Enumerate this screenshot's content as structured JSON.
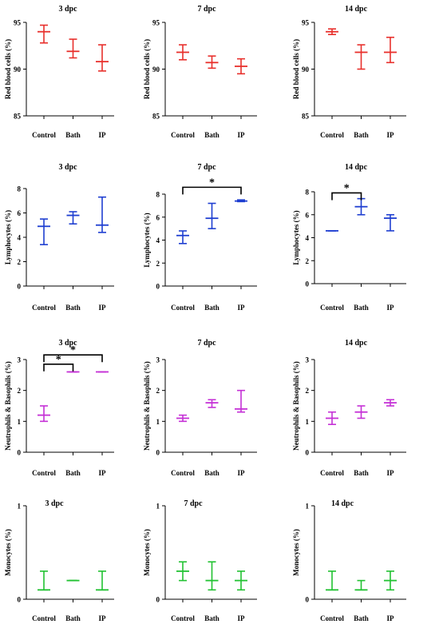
{
  "chart_data": [
    {
      "type": "errorbar",
      "title": "3 dpc",
      "ylabel": "Red blood cells (%)",
      "categories": [
        "Control",
        "Bath",
        "IP"
      ],
      "ylim": [
        85,
        95
      ],
      "yticks": [
        85,
        90,
        95
      ],
      "color": "#e8302c",
      "series": [
        {
          "mean": [
            94.0,
            91.9,
            90.8
          ],
          "lower": [
            92.8,
            91.2,
            89.8
          ],
          "upper": [
            94.7,
            93.2,
            92.6
          ]
        }
      ],
      "annotations": []
    },
    {
      "type": "errorbar",
      "title": "7 dpc",
      "ylabel": "Red blood cells (%)",
      "categories": [
        "Control",
        "Bath",
        "IP"
      ],
      "ylim": [
        85,
        95
      ],
      "yticks": [
        85,
        90,
        95
      ],
      "color": "#e8302c",
      "series": [
        {
          "mean": [
            91.8,
            90.7,
            90.3
          ],
          "lower": [
            91.0,
            90.1,
            89.5
          ],
          "upper": [
            92.6,
            91.4,
            91.1
          ]
        }
      ],
      "annotations": []
    },
    {
      "type": "errorbar",
      "title": "14 dpc",
      "ylabel": "Red blood cells (%)",
      "categories": [
        "Control",
        "Bath",
        "IP"
      ],
      "ylim": [
        85,
        95
      ],
      "yticks": [
        85,
        90,
        95
      ],
      "color": "#e8302c",
      "series": [
        {
          "mean": [
            94.0,
            91.8,
            91.8
          ],
          "lower": [
            93.7,
            90.0,
            90.7
          ],
          "upper": [
            94.3,
            92.6,
            93.4
          ]
        }
      ],
      "annotations": []
    },
    {
      "type": "errorbar",
      "title": "3 dpc",
      "ylabel": "Lymphocytes (%)",
      "categories": [
        "Control",
        "Bath",
        "IP"
      ],
      "ylim": [
        0,
        8
      ],
      "yticks": [
        0,
        2,
        4,
        6,
        8
      ],
      "color": "#1f3fd1",
      "series": [
        {
          "mean": [
            4.9,
            5.8,
            5.0
          ],
          "lower": [
            3.4,
            5.1,
            4.4
          ],
          "upper": [
            5.5,
            6.1,
            7.3
          ]
        }
      ],
      "annotations": []
    },
    {
      "type": "errorbar",
      "title": "7 dpc",
      "ylabel": "Lymphocytes (%)",
      "categories": [
        "Control",
        "Bath",
        "IP"
      ],
      "ylim": [
        0,
        8
      ],
      "yticks": [
        0,
        2,
        4,
        6,
        8
      ],
      "color": "#1f3fd1",
      "series": [
        {
          "mean": [
            4.4,
            5.9,
            7.4
          ],
          "lower": [
            3.7,
            5.0,
            7.35
          ],
          "upper": [
            4.8,
            7.2,
            7.5
          ]
        }
      ],
      "annotations": [
        {
          "from": 0,
          "to": 2,
          "y": 8.6,
          "label": "*"
        }
      ]
    },
    {
      "type": "errorbar",
      "title": "14 dpc",
      "ylabel": "Lymphocytes (%)",
      "categories": [
        "Control",
        "Bath",
        "IP"
      ],
      "ylim": [
        0,
        8
      ],
      "yticks": [
        0,
        2,
        4,
        6,
        8
      ],
      "color": "#1f3fd1",
      "series": [
        {
          "mean": [
            4.6,
            6.7,
            5.7
          ],
          "lower": [
            4.6,
            6.0,
            4.6
          ],
          "upper": [
            4.6,
            7.4,
            6.0
          ]
        }
      ],
      "annotations": [
        {
          "from": 0,
          "to": 1,
          "y": 7.9,
          "label": "*"
        }
      ]
    },
    {
      "type": "errorbar",
      "title": "3 dpc",
      "ylabel": "Neutrophils & Basophils (%)",
      "categories": [
        "Control",
        "Bath",
        "IP"
      ],
      "ylim": [
        0,
        3
      ],
      "yticks": [
        0,
        1,
        2,
        3
      ],
      "color": "#c531d6",
      "series": [
        {
          "mean": [
            1.2,
            2.6,
            2.6
          ],
          "lower": [
            1.0,
            2.6,
            2.6
          ],
          "upper": [
            1.5,
            2.6,
            2.6
          ]
        }
      ],
      "annotations": [
        {
          "from": 0,
          "to": 1,
          "y": 2.85,
          "label": "*"
        },
        {
          "from": 0,
          "to": 2,
          "y": 3.15,
          "label": "*"
        }
      ]
    },
    {
      "type": "errorbar",
      "title": "7 dpc",
      "ylabel": "Neutrophils & Basophils (%)",
      "categories": [
        "Control",
        "Bath",
        "IP"
      ],
      "ylim": [
        0,
        3
      ],
      "yticks": [
        0,
        1,
        2,
        3
      ],
      "color": "#c531d6",
      "series": [
        {
          "mean": [
            1.1,
            1.6,
            1.4
          ],
          "lower": [
            1.0,
            1.45,
            1.3
          ],
          "upper": [
            1.2,
            1.7,
            2.0
          ]
        }
      ],
      "annotations": []
    },
    {
      "type": "errorbar",
      "title": "14 dpc",
      "ylabel": "Neutrophils & Basophils (%)",
      "categories": [
        "Control",
        "Bath",
        "IP"
      ],
      "ylim": [
        0,
        3
      ],
      "yticks": [
        0,
        1,
        2,
        3
      ],
      "color": "#c531d6",
      "series": [
        {
          "mean": [
            1.1,
            1.3,
            1.6
          ],
          "lower": [
            0.9,
            1.1,
            1.5
          ],
          "upper": [
            1.3,
            1.5,
            1.7
          ]
        }
      ],
      "annotations": []
    },
    {
      "type": "errorbar",
      "title": "3 dpc",
      "ylabel": "Monocytes (%)",
      "categories": [
        "Control",
        "Bath",
        "IP"
      ],
      "ylim": [
        0,
        1
      ],
      "yticks": [
        0,
        1
      ],
      "color": "#22c232",
      "series": [
        {
          "mean": [
            0.1,
            0.2,
            0.1
          ],
          "lower": [
            0.1,
            0.2,
            0.1
          ],
          "upper": [
            0.3,
            0.2,
            0.3
          ]
        }
      ],
      "annotations": []
    },
    {
      "type": "errorbar",
      "title": "7 dpc",
      "ylabel": "Monocytes (%)",
      "categories": [
        "Control",
        "Bath",
        "IP"
      ],
      "ylim": [
        0,
        1
      ],
      "yticks": [
        0,
        1
      ],
      "color": "#22c232",
      "series": [
        {
          "mean": [
            0.3,
            0.2,
            0.2
          ],
          "lower": [
            0.2,
            0.1,
            0.1
          ],
          "upper": [
            0.4,
            0.4,
            0.3
          ]
        }
      ],
      "annotations": []
    },
    {
      "type": "errorbar",
      "title": "14 dpc",
      "ylabel": "Monocytes (%)",
      "categories": [
        "Control",
        "Bath",
        "IP"
      ],
      "ylim": [
        0,
        1
      ],
      "yticks": [
        0,
        1
      ],
      "color": "#22c232",
      "series": [
        {
          "mean": [
            0.1,
            0.1,
            0.2
          ],
          "lower": [
            0.1,
            0.1,
            0.1
          ],
          "upper": [
            0.3,
            0.2,
            0.3
          ]
        }
      ],
      "annotations": []
    }
  ]
}
